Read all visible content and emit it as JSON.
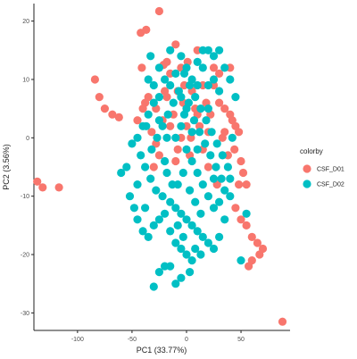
{
  "chart_data": {
    "type": "scatter",
    "xlabel": "PC1 (33.77%)",
    "ylabel": "PC2 (3.56%)",
    "xlim": [
      -140,
      95
    ],
    "ylim": [
      -33,
      23
    ],
    "xticks": [
      -100,
      -50,
      0,
      50
    ],
    "yticks": [
      -30,
      -20,
      -10,
      0,
      10,
      20
    ],
    "grid": false,
    "legend": {
      "title": "colorby",
      "placement": "right",
      "entries": [
        {
          "label": "CSF_D01",
          "color": "#F8766D"
        },
        {
          "label": "CSF_D02",
          "color": "#00BFC4"
        }
      ]
    },
    "series": [
      {
        "name": "CSF_D01",
        "color": "#F8766D",
        "points": [
          [
            -137,
            -7.5
          ],
          [
            -132,
            -8.5
          ],
          [
            -117,
            -8.5
          ],
          [
            -84,
            10
          ],
          [
            -80,
            7
          ],
          [
            -75,
            5
          ],
          [
            -68,
            4
          ],
          [
            -62,
            3.5
          ],
          [
            -42,
            18
          ],
          [
            -37,
            18.5
          ],
          [
            -25,
            21.7
          ],
          [
            -41,
            12
          ],
          [
            -21,
            12.5
          ],
          [
            -38,
            6
          ],
          [
            -35,
            7
          ],
          [
            -28,
            5
          ],
          [
            -22,
            3
          ],
          [
            -15,
            2
          ],
          [
            -32,
            1
          ],
          [
            -18,
            13
          ],
          [
            -15,
            11
          ],
          [
            -5,
            12
          ],
          [
            1,
            13
          ],
          [
            -25,
            -3
          ],
          [
            -10,
            -4
          ],
          [
            -8,
            8
          ],
          [
            5,
            8
          ],
          [
            -3,
            6
          ],
          [
            10,
            4
          ],
          [
            0,
            2
          ],
          [
            -12,
            4
          ],
          [
            18,
            6
          ],
          [
            22,
            4
          ],
          [
            -5,
            0
          ],
          [
            3,
            -3
          ],
          [
            8,
            5
          ],
          [
            12,
            2
          ],
          [
            -2,
            9
          ],
          [
            -18,
            7
          ],
          [
            -8,
            -2
          ],
          [
            4,
            0
          ],
          [
            15,
            9
          ],
          [
            25,
            12
          ],
          [
            30,
            6
          ],
          [
            35,
            5
          ],
          [
            40,
            4
          ],
          [
            42,
            3
          ],
          [
            45,
            2
          ],
          [
            48,
            1
          ],
          [
            44,
            -2
          ],
          [
            50,
            -4
          ],
          [
            52,
            -6
          ],
          [
            48,
            -8
          ],
          [
            55,
            -8
          ],
          [
            45,
            -12
          ],
          [
            50,
            -14
          ],
          [
            55,
            -15
          ],
          [
            60,
            -17
          ],
          [
            65,
            -18
          ],
          [
            70,
            -19
          ],
          [
            60,
            -21
          ],
          [
            67,
            -20
          ],
          [
            57,
            -22
          ],
          [
            88,
            -31.5
          ],
          [
            28,
            -8
          ],
          [
            20,
            -5
          ],
          [
            -30,
            -5
          ],
          [
            -40,
            5
          ],
          [
            -45,
            3
          ],
          [
            25,
            9
          ],
          [
            33,
            0
          ],
          [
            38,
            -3
          ],
          [
            15,
            -2
          ],
          [
            -20,
            8
          ],
          [
            40,
            12
          ],
          [
            10,
            15
          ],
          [
            -10,
            16
          ],
          [
            30,
            11
          ],
          [
            35,
            1
          ],
          [
            20,
            1
          ],
          [
            -28,
            -1
          ]
        ]
      },
      {
        "name": "CSF_D02",
        "color": "#00BFC4",
        "points": [
          [
            -20,
            10
          ],
          [
            -15,
            9
          ],
          [
            -10,
            11
          ],
          [
            -5,
            14
          ],
          [
            0,
            12
          ],
          [
            5,
            10
          ],
          [
            10,
            13
          ],
          [
            15,
            12
          ],
          [
            20,
            9
          ],
          [
            25,
            10
          ],
          [
            30,
            8
          ],
          [
            -25,
            7
          ],
          [
            -30,
            6
          ],
          [
            -35,
            4
          ],
          [
            -40,
            2
          ],
          [
            -45,
            0
          ],
          [
            -50,
            -1
          ],
          [
            -42,
            -3
          ],
          [
            -38,
            -5
          ],
          [
            -33,
            -7
          ],
          [
            -28,
            -9
          ],
          [
            -22,
            -10
          ],
          [
            -15,
            -11
          ],
          [
            -10,
            -12
          ],
          [
            -5,
            -13
          ],
          [
            0,
            -14
          ],
          [
            5,
            -15
          ],
          [
            10,
            -16
          ],
          [
            15,
            -17
          ],
          [
            20,
            -18
          ],
          [
            25,
            -19
          ],
          [
            -55,
            -5
          ],
          [
            -60,
            -6
          ],
          [
            -52,
            -10
          ],
          [
            -48,
            -12
          ],
          [
            -45,
            -14
          ],
          [
            -40,
            -16
          ],
          [
            -35,
            -17
          ],
          [
            -30,
            -15
          ],
          [
            -25,
            -14
          ],
          [
            -20,
            -13
          ],
          [
            -15,
            -16
          ],
          [
            -10,
            -18
          ],
          [
            -5,
            -19
          ],
          [
            0,
            -20
          ],
          [
            5,
            -21
          ],
          [
            -20,
            -22
          ],
          [
            -15,
            -22
          ],
          [
            -25,
            -23
          ],
          [
            -10,
            -25
          ],
          [
            -5,
            -24
          ],
          [
            -30,
            -25.5
          ],
          [
            0,
            -2
          ],
          [
            5,
            -4
          ],
          [
            10,
            -6
          ],
          [
            15,
            -8
          ],
          [
            20,
            -10
          ],
          [
            25,
            -12
          ],
          [
            30,
            -11
          ],
          [
            35,
            -9
          ],
          [
            40,
            -7
          ],
          [
            38,
            -5
          ],
          [
            33,
            -3
          ],
          [
            28,
            -1
          ],
          [
            23,
            1
          ],
          [
            18,
            3
          ],
          [
            13,
            5
          ],
          [
            8,
            7
          ],
          [
            3,
            9
          ],
          [
            -2,
            11
          ],
          [
            -7,
            8
          ],
          [
            -12,
            6
          ],
          [
            -17,
            4
          ],
          [
            -22,
            2
          ],
          [
            -27,
            0
          ],
          [
            -32,
            -2
          ],
          [
            -37,
            2
          ],
          [
            -2,
            4
          ],
          [
            2,
            6
          ],
          [
            7,
            3
          ],
          [
            12,
            1
          ],
          [
            17,
            -1
          ],
          [
            22,
            -3
          ],
          [
            27,
            -5
          ],
          [
            32,
            -7
          ],
          [
            -3,
            -6
          ],
          [
            -8,
            -8
          ],
          [
            3,
            -9
          ],
          [
            8,
            -11
          ],
          [
            13,
            -13
          ],
          [
            -18,
            -6
          ],
          [
            -13,
            -8
          ],
          [
            30,
            15
          ],
          [
            35,
            12
          ],
          [
            25,
            14
          ],
          [
            15,
            15
          ],
          [
            20,
            15
          ],
          [
            -15,
            15
          ],
          [
            -25,
            12
          ],
          [
            -30,
            9
          ],
          [
            -35,
            10
          ],
          [
            40,
            10
          ],
          [
            45,
            7
          ],
          [
            42,
            0
          ],
          [
            40,
            -10
          ],
          [
            35,
            -14
          ],
          [
            30,
            -17
          ],
          [
            -45,
            -8
          ],
          [
            -38,
            -12
          ],
          [
            -5,
            2
          ],
          [
            0,
            5
          ],
          [
            5,
            1
          ],
          [
            -10,
            0
          ],
          [
            10,
            -2
          ],
          [
            -20,
            -4
          ],
          [
            20,
            5
          ],
          [
            -25,
            3
          ],
          [
            25,
            -7
          ],
          [
            -8,
            -15
          ],
          [
            8,
            -19
          ],
          [
            3,
            -23
          ],
          [
            -3,
            -17
          ],
          [
            13,
            -20
          ],
          [
            -33,
            14
          ],
          [
            10,
            9
          ],
          [
            -5,
            7
          ],
          [
            50,
            -21
          ],
          [
            55,
            -13
          ],
          [
            -18,
            0
          ]
        ]
      }
    ]
  }
}
